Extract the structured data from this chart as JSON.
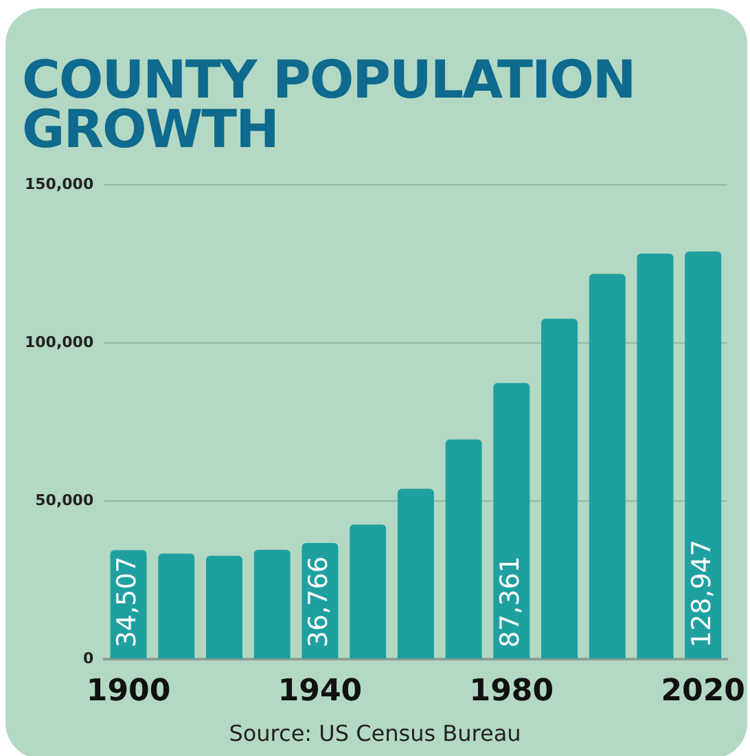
{
  "chart_data": {
    "type": "bar",
    "title": "COUNTY POPULATION GROWTH",
    "categories": [
      "1900",
      null,
      null,
      null,
      "1940",
      null,
      null,
      null,
      "1980",
      null,
      null,
      null,
      "2020"
    ],
    "values": [
      34507,
      33400,
      32700,
      34600,
      36766,
      42600,
      53900,
      69500,
      87361,
      107700,
      121900,
      128300,
      128947
    ],
    "value_labels": [
      "34,507",
      null,
      null,
      null,
      "36,766",
      null,
      null,
      null,
      "87,361",
      null,
      null,
      null,
      "128,947"
    ],
    "color": "#1fa0a0",
    "ylim": [
      0,
      150000
    ],
    "yticks": [
      {
        "value": 0,
        "label": "0"
      },
      {
        "value": 50000,
        "label": "50,000"
      },
      {
        "value": 100000,
        "label": "100,000"
      },
      {
        "value": 150000,
        "label": "150,000"
      }
    ],
    "grid": "y",
    "annotations": [
      "Source: US Census Bureau"
    ]
  }
}
